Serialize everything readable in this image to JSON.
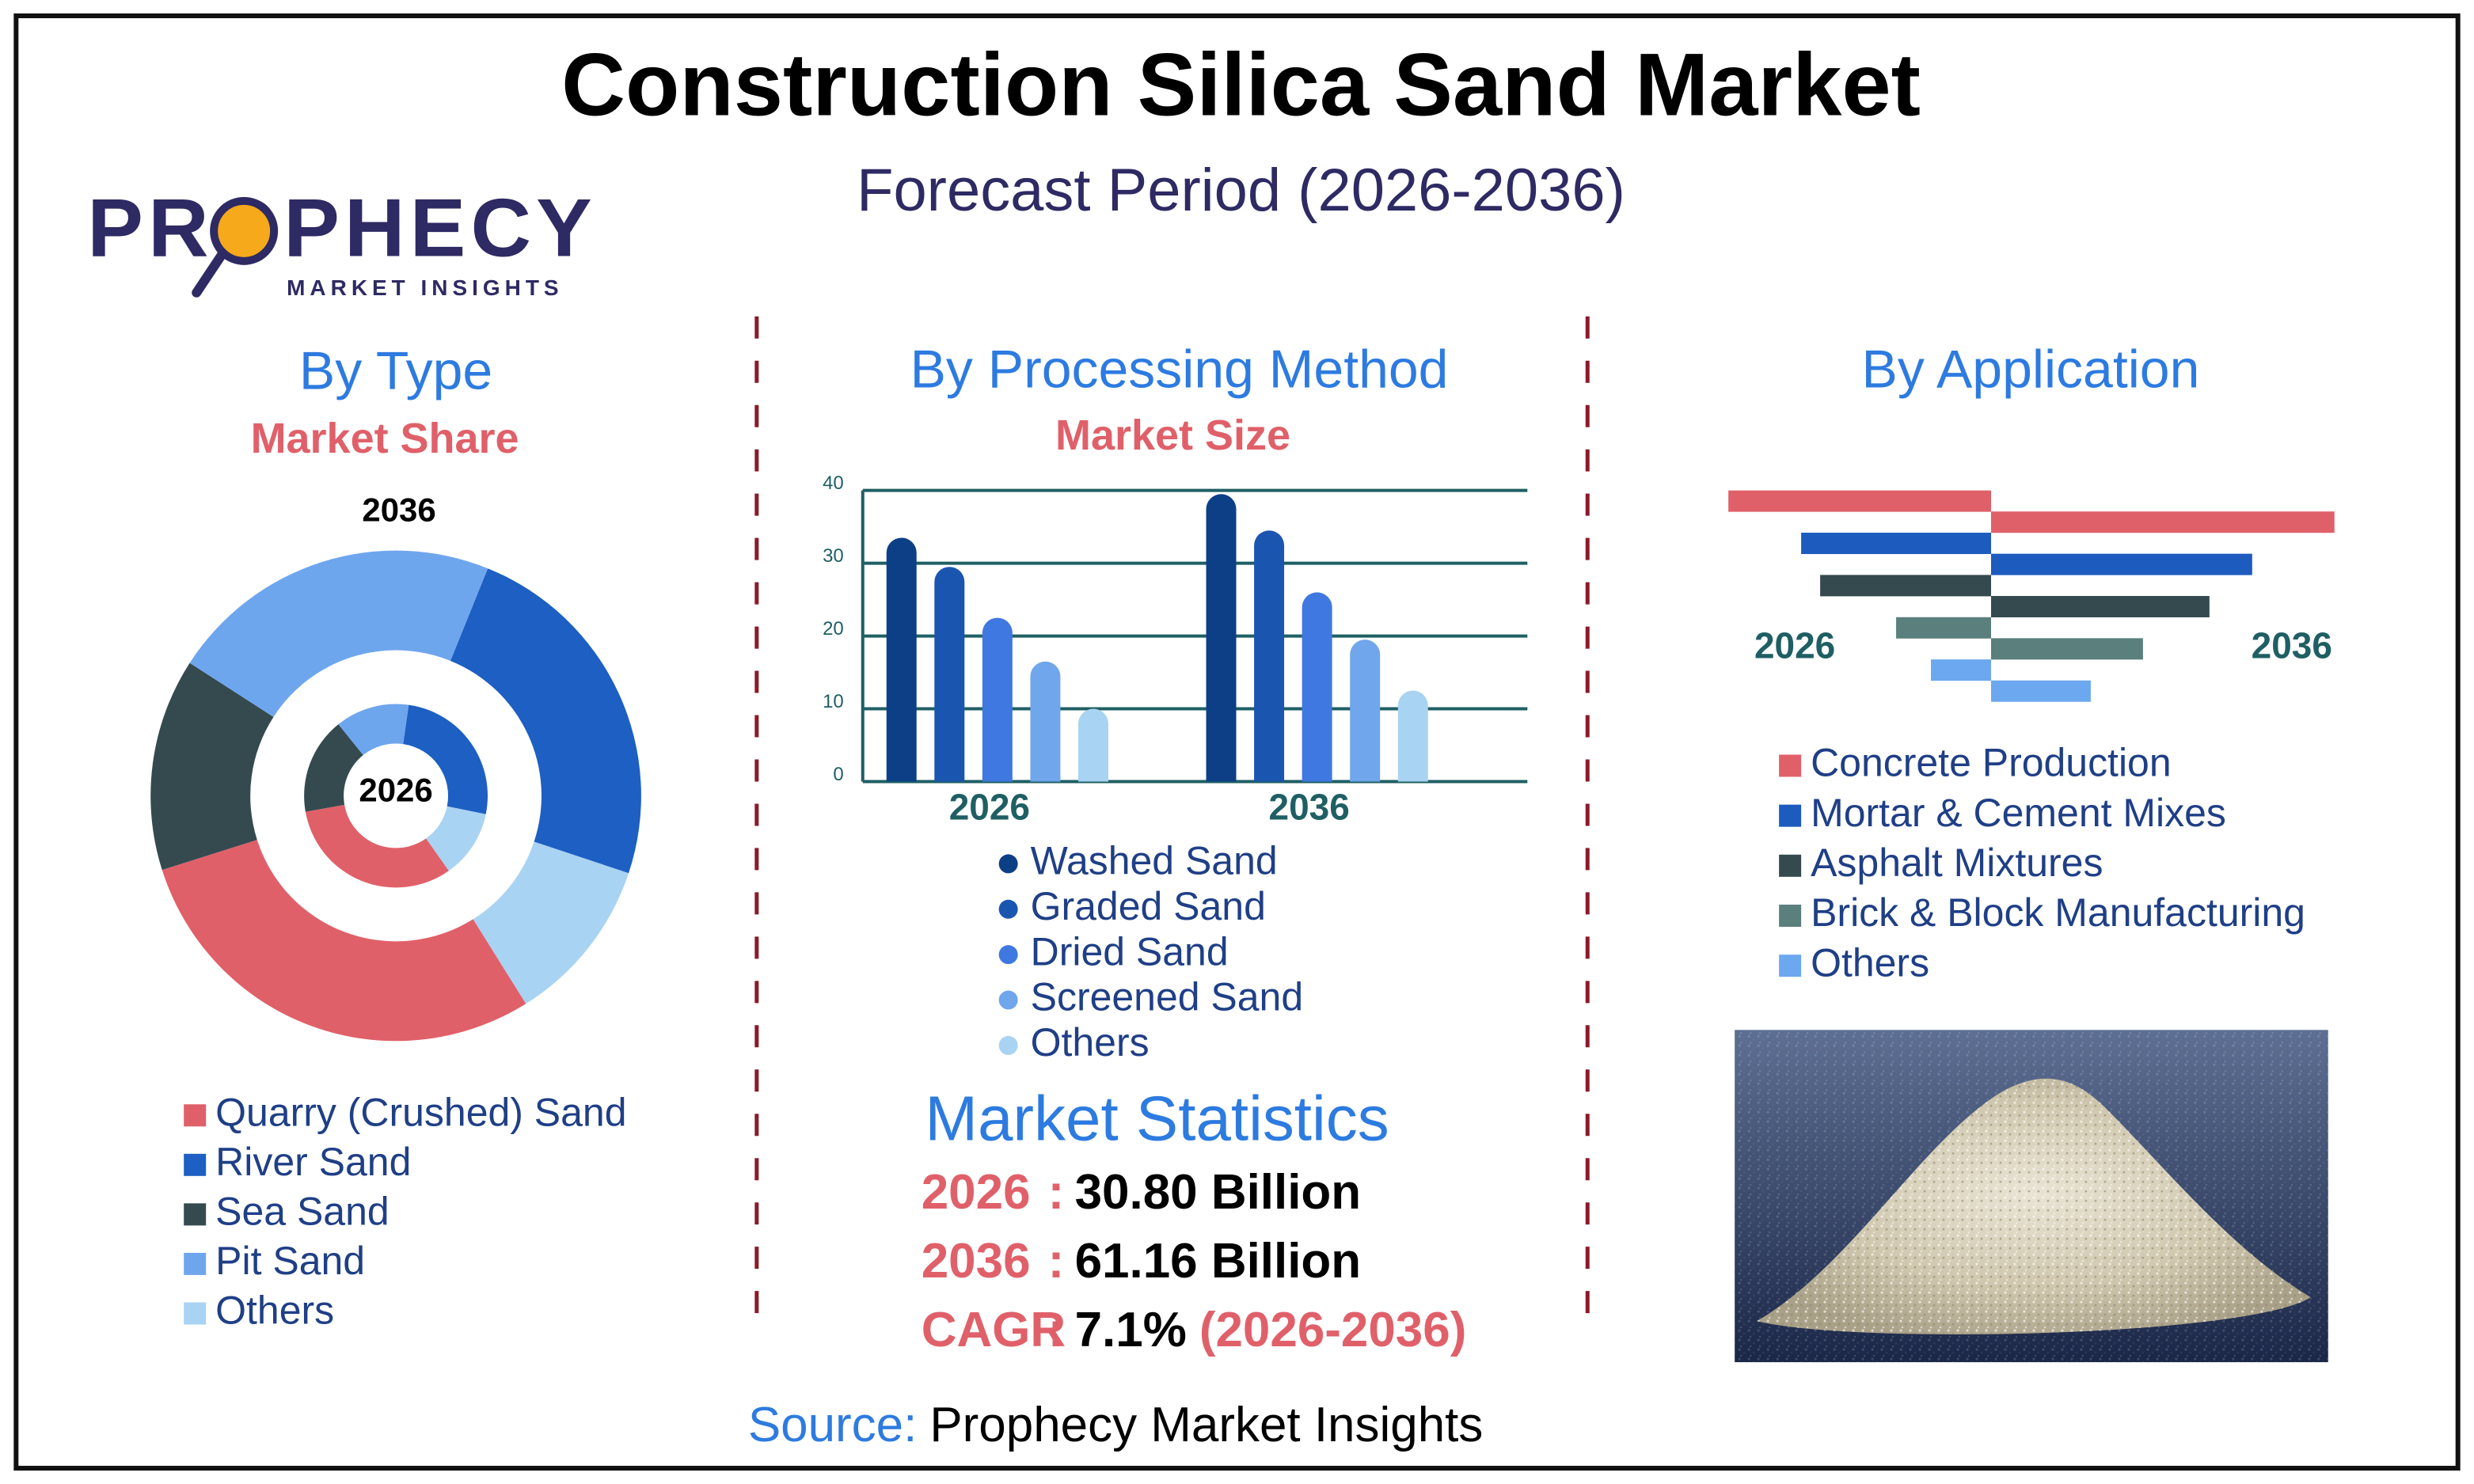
{
  "title": "Construction Silica Sand Market",
  "subtitle": "Forecast Period (2026-2036)",
  "logo": {
    "name": "PROPHECY",
    "tagline": "MARKET INSIGHTS"
  },
  "chart_data": [
    {
      "type": "donut",
      "title": "By Type",
      "subtitle": "Market Share",
      "categories": [
        "Quarry (Crushed) Sand",
        "River Sand",
        "Sea Sand",
        "Pit Sand",
        "Others"
      ],
      "colors": [
        "#e0606a",
        "#1d5fc2",
        "#344a4f",
        "#6ea6ee",
        "#a9d3f2"
      ],
      "series": [
        {
          "name": "2036",
          "values": [
            29,
            24,
            14,
            22,
            11
          ]
        },
        {
          "name": "2026",
          "values": [
            32,
            26,
            17,
            13,
            12
          ]
        }
      ]
    },
    {
      "type": "bar",
      "title": "By Processing Method",
      "subtitle": "Market Size",
      "categories": [
        "2026",
        "2036"
      ],
      "series": [
        {
          "name": "Washed Sand",
          "color": "#0d3f86",
          "values": [
            33.5,
            39.5
          ]
        },
        {
          "name": "Graded Sand",
          "color": "#1a55b0",
          "values": [
            29.5,
            34.5
          ]
        },
        {
          "name": "Dried Sand",
          "color": "#3f78e0",
          "values": [
            22.5,
            26
          ]
        },
        {
          "name": "Screened Sand",
          "color": "#6fa6ec",
          "values": [
            16.5,
            19.5
          ]
        },
        {
          "name": "Others",
          "color": "#a9d3f2",
          "values": [
            10,
            12.5
          ]
        }
      ],
      "ylim": [
        0,
        40
      ],
      "yticks": [
        0,
        10,
        20,
        30,
        40
      ],
      "grid": true
    },
    {
      "type": "butterfly",
      "title": "By Application",
      "categories": [
        "Concrete Production",
        "Mortar & Cement Mixes",
        "Asphalt Mixtures",
        "Brick & Block Manufacturing",
        "Others"
      ],
      "colors": [
        "#e0606a",
        "#1d5bbf",
        "#344a4f",
        "#5a7f7d",
        "#6ca8ef"
      ],
      "series": [
        {
          "name": "2026",
          "values": [
            16.6,
            12,
            10.8,
            6,
            3.8
          ]
        },
        {
          "name": "2036",
          "values": [
            21.7,
            16.5,
            13.8,
            9.6,
            6.3
          ]
        }
      ]
    }
  ],
  "statistics": {
    "title": "Market Statistics",
    "rows": [
      {
        "label": "2026",
        "separator": ":",
        "value": "30.80 Billion"
      },
      {
        "label": "2036",
        "separator": ":",
        "value": "61.16 Billion"
      },
      {
        "label": "CAGR",
        "separator": ":",
        "value": "7.1%",
        "period": "(2026-2036)"
      }
    ]
  },
  "source": {
    "label": "Source:",
    "text": "Prophecy Market Insights"
  }
}
